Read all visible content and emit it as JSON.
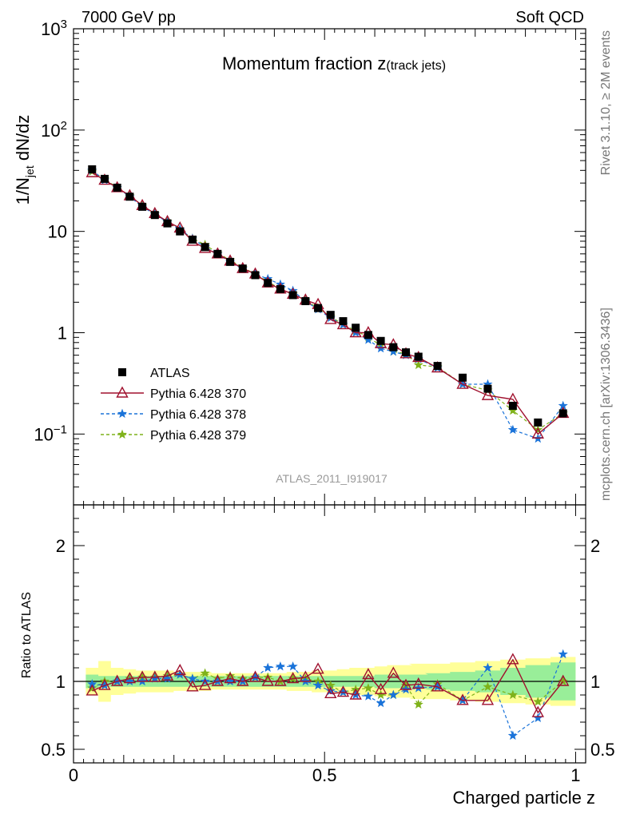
{
  "header": {
    "left": "7000 GeV pp",
    "right": "Soft QCD"
  },
  "side_labels": {
    "top": "Rivet 3.1.10, ≥ 2M events",
    "bottom": "mcplots.cern.ch [arXiv:1306.3436]"
  },
  "watermark": "ATLAS_2011_I919017",
  "colors": {
    "data": "#000000",
    "p370": "#a0112e",
    "p378": "#1a73d9",
    "p379": "#7fb21a",
    "band_outer": "#ffff99",
    "band_inner": "#99ee99"
  },
  "chart_data": [
    {
      "type": "scatter",
      "panel": "main",
      "title_main": "Momentum fraction z",
      "title_sub": "(track jets)",
      "ylabel": "1/N",
      "ylabel_sub": "jet",
      "ylabel_tail": " dN/dz",
      "yscale": "log",
      "ylim": [
        0.02,
        1000
      ],
      "xlim": [
        0,
        1.02
      ],
      "yticks": [
        {
          "v": 1000,
          "base": "10",
          "exp": "3"
        },
        {
          "v": 100,
          "base": "10",
          "exp": "2"
        },
        {
          "v": 10,
          "base": "10",
          "exp": ""
        },
        {
          "v": 1,
          "base": "1",
          "exp": ""
        },
        {
          "v": 0.1,
          "base": "10",
          "exp": "−1"
        }
      ],
      "legend_position": "middle-left",
      "x": [
        0.037,
        0.062,
        0.087,
        0.112,
        0.137,
        0.162,
        0.187,
        0.212,
        0.237,
        0.262,
        0.287,
        0.312,
        0.337,
        0.362,
        0.387,
        0.412,
        0.437,
        0.462,
        0.487,
        0.512,
        0.537,
        0.562,
        0.587,
        0.612,
        0.637,
        0.662,
        0.687,
        0.725,
        0.775,
        0.825,
        0.875,
        0.925,
        0.975
      ],
      "series": [
        {
          "name": "ATLAS",
          "key": "data",
          "marker": "square",
          "values": [
            41,
            33,
            27,
            22,
            17.5,
            14.5,
            12,
            10,
            8.3,
            7,
            6,
            5,
            4.3,
            3.7,
            3.1,
            2.7,
            2.35,
            2.05,
            1.75,
            1.5,
            1.3,
            1.12,
            0.95,
            0.83,
            0.72,
            0.64,
            0.58,
            0.47,
            0.36,
            0.28,
            0.19,
            0.13,
            0.16
          ]
        },
        {
          "name": "Pythia 6.428 370",
          "key": "p370",
          "marker": "triangle",
          "values": [
            38,
            32,
            27,
            22.5,
            18,
            15,
            12.5,
            10.8,
            8.0,
            6.8,
            6.0,
            5.1,
            4.3,
            3.8,
            3.1,
            2.7,
            2.4,
            2.1,
            1.9,
            1.35,
            1.2,
            1.0,
            1.0,
            0.78,
            0.76,
            0.62,
            0.57,
            0.45,
            0.31,
            0.24,
            0.22,
            0.1,
            0.16
          ]
        },
        {
          "name": "Pythia 6.428 378",
          "key": "p378",
          "marker": "star",
          "dash": "4,3",
          "values": [
            40,
            32,
            27,
            22,
            17.5,
            14.8,
            12.3,
            10.5,
            8.5,
            7.0,
            6.0,
            5.0,
            4.3,
            3.8,
            3.4,
            3.0,
            2.6,
            2.05,
            1.7,
            1.4,
            1.2,
            1.0,
            0.85,
            0.7,
            0.65,
            0.6,
            0.55,
            0.45,
            0.31,
            0.31,
            0.11,
            0.09,
            0.19
          ]
        },
        {
          "name": "Pythia 6.428 379",
          "key": "p379",
          "marker": "star",
          "dash": "4,3",
          "values": [
            39,
            33,
            27,
            22.5,
            18,
            15,
            12.5,
            10.5,
            8.5,
            7.4,
            6.1,
            5.2,
            4.4,
            3.8,
            3.2,
            2.7,
            2.4,
            2.1,
            1.75,
            1.45,
            1.2,
            1.05,
            0.9,
            0.75,
            0.65,
            0.62,
            0.48,
            0.46,
            0.31,
            0.27,
            0.17,
            0.11,
            0.16
          ]
        }
      ]
    },
    {
      "type": "scatter",
      "panel": "ratio",
      "xlabel": "Charged particle z",
      "ylabel": "Ratio to ATLAS",
      "ylim": [
        0.4,
        2.3
      ],
      "xlim": [
        0,
        1.02
      ],
      "yticks": [
        2,
        1,
        0.5
      ],
      "xticks": [
        {
          "v": 0,
          "label": "0"
        },
        {
          "v": 0.5,
          "label": "0.5"
        },
        {
          "v": 1,
          "label": "1"
        }
      ],
      "band_inner": [
        0.05,
        0.04,
        0.04,
        0.04,
        0.04,
        0.04,
        0.04,
        0.04,
        0.04,
        0.04,
        0.04,
        0.04,
        0.04,
        0.04,
        0.04,
        0.04,
        0.04,
        0.04,
        0.04,
        0.04,
        0.04,
        0.04,
        0.04,
        0.05,
        0.05,
        0.05,
        0.05,
        0.06,
        0.07,
        0.08,
        0.1,
        0.12,
        0.14
      ],
      "band_outer": [
        0.1,
        0.15,
        0.1,
        0.09,
        0.08,
        0.08,
        0.08,
        0.07,
        0.07,
        0.07,
        0.06,
        0.06,
        0.06,
        0.06,
        0.06,
        0.06,
        0.07,
        0.07,
        0.08,
        0.08,
        0.09,
        0.1,
        0.1,
        0.11,
        0.12,
        0.12,
        0.13,
        0.13,
        0.14,
        0.15,
        0.16,
        0.17,
        0.18
      ],
      "series": [
        {
          "name": "Pythia 6.428 370",
          "key": "p370",
          "marker": "triangle",
          "values": [
            0.93,
            0.97,
            1.0,
            1.02,
            1.03,
            1.03,
            1.04,
            1.08,
            0.96,
            0.97,
            1.0,
            1.02,
            1.0,
            1.03,
            1.0,
            1.0,
            1.02,
            1.03,
            1.09,
            0.91,
            0.92,
            0.9,
            1.05,
            0.94,
            1.06,
            0.97,
            0.98,
            0.96,
            0.86,
            0.86,
            1.16,
            0.77,
            1.0
          ]
        },
        {
          "name": "Pythia 6.428 378",
          "key": "p378",
          "marker": "star",
          "values": [
            0.98,
            0.97,
            1.0,
            1.0,
            1.0,
            1.02,
            1.02,
            1.05,
            1.02,
            1.0,
            1.0,
            1.0,
            1.0,
            1.03,
            1.1,
            1.11,
            1.11,
            1.0,
            0.97,
            0.93,
            0.92,
            0.9,
            0.89,
            0.84,
            0.9,
            0.94,
            0.95,
            0.96,
            0.86,
            1.1,
            0.6,
            0.73,
            1.2
          ]
        },
        {
          "name": "Pythia 6.428 379",
          "key": "p379",
          "marker": "star",
          "values": [
            0.95,
            1.0,
            1.0,
            1.02,
            1.03,
            1.03,
            1.04,
            1.05,
            1.02,
            1.06,
            1.02,
            1.04,
            1.02,
            1.03,
            1.03,
            1.0,
            1.02,
            1.02,
            1.0,
            0.97,
            0.92,
            0.94,
            0.95,
            0.9,
            0.9,
            0.97,
            0.83,
            0.98,
            0.86,
            0.96,
            0.9,
            0.85,
            1.0
          ]
        }
      ]
    }
  ]
}
